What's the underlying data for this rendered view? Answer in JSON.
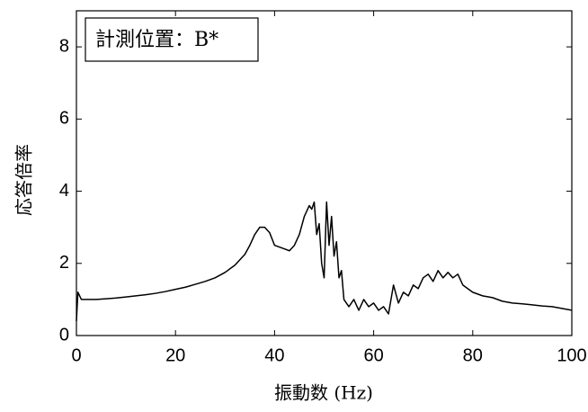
{
  "chart_data": {
    "type": "line",
    "annotation": "計測位置：B*",
    "x_label": "振動数 (Hz)",
    "y_label": "応答倍率",
    "xlim": [
      0,
      100
    ],
    "xticks": [
      0,
      20,
      40,
      60,
      80,
      100
    ],
    "ylim": [
      0,
      9
    ],
    "yticks": [
      0,
      2,
      4,
      6,
      8
    ],
    "x": [
      0,
      0.3,
      1,
      2,
      4,
      6,
      8,
      10,
      12,
      14,
      16,
      18,
      20,
      22,
      24,
      26,
      27,
      28,
      30,
      32,
      34,
      35,
      36,
      37,
      38,
      39,
      40,
      41,
      42,
      43,
      44,
      45,
      46,
      47,
      47.5,
      48,
      48.5,
      49,
      49.5,
      50,
      50.5,
      51,
      51.5,
      52,
      52.5,
      53,
      53.5,
      54,
      55,
      56,
      57,
      58,
      59,
      60,
      61,
      62,
      63,
      64,
      65,
      66,
      67,
      68,
      69,
      70,
      71,
      72,
      73,
      74,
      75,
      76,
      77,
      78,
      79,
      80,
      82,
      84,
      86,
      88,
      90,
      92,
      94,
      96,
      98,
      100
    ],
    "series": [
      {
        "color": "#000000",
        "values": [
          0.4,
          1.2,
          1.0,
          1.0,
          1.0,
          1.02,
          1.04,
          1.07,
          1.1,
          1.13,
          1.17,
          1.22,
          1.28,
          1.34,
          1.42,
          1.5,
          1.55,
          1.6,
          1.75,
          1.95,
          2.25,
          2.5,
          2.8,
          3.0,
          3.0,
          2.85,
          2.5,
          2.45,
          2.4,
          2.35,
          2.5,
          2.8,
          3.3,
          3.6,
          3.5,
          3.7,
          2.8,
          3.1,
          2.0,
          1.6,
          3.7,
          2.5,
          3.3,
          2.2,
          2.6,
          1.6,
          1.8,
          1.0,
          0.8,
          1.0,
          0.7,
          1.0,
          0.8,
          0.9,
          0.7,
          0.8,
          0.6,
          1.4,
          0.9,
          1.2,
          1.1,
          1.4,
          1.3,
          1.6,
          1.7,
          1.5,
          1.8,
          1.6,
          1.75,
          1.6,
          1.7,
          1.4,
          1.3,
          1.2,
          1.1,
          1.05,
          0.95,
          0.9,
          0.88,
          0.85,
          0.82,
          0.8,
          0.75,
          0.7
        ]
      }
    ]
  }
}
